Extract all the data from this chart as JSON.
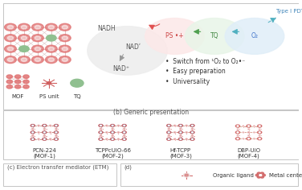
{
  "background": "#ffffff",
  "panel_a": {
    "mof_node_color": "#e07070",
    "tq_color": "#90c090",
    "circle_gray": "#eeeeee",
    "circle_pink": "#fce8e8",
    "circle_green": "#e8f5e8",
    "circle_blue": "#e0eef8",
    "arrow_red": "#e05050",
    "arrow_green": "#50a050",
    "arrow_cyan": "#50b0c0",
    "arrow_gray": "#999999",
    "text_nadh": "NADH",
    "text_nad1": "NADʹ",
    "text_nad2": "NAD⁺",
    "text_ps": "PS •+",
    "text_tq": "TQ",
    "text_o2": "O₂",
    "text_type1": "Type I PDT",
    "bullet_texts": [
      "Switch from ¹O₂ to O₂•⁻",
      "Easy preparation",
      "Universality"
    ],
    "legend_labels": [
      "MOF",
      "PS unit",
      "TQ"
    ]
  },
  "panel_b": {
    "title": "(b) Generic presentation",
    "mof_labels": [
      "PCN-224\n(MOF-1)",
      "TCPPcUiO-66\n(MOF-2)",
      "Hf-TCPP\n(MOF-3)",
      "DBP-UiO\n(MOF-4)"
    ],
    "node_color_red": "#d06060",
    "node_color_blue": "#7090c0",
    "node_color_green": "#70a070",
    "line_color": "#c0a090"
  },
  "panel_c": {
    "label": "(c) Electron transfer mediator (ETM)"
  },
  "panel_d": {
    "label": "(d)",
    "organic_label": "Organic ligand",
    "metal_label": "Metal center"
  },
  "border_color": "#bbbbbb",
  "text_color": "#333333",
  "title_color": "#555555"
}
